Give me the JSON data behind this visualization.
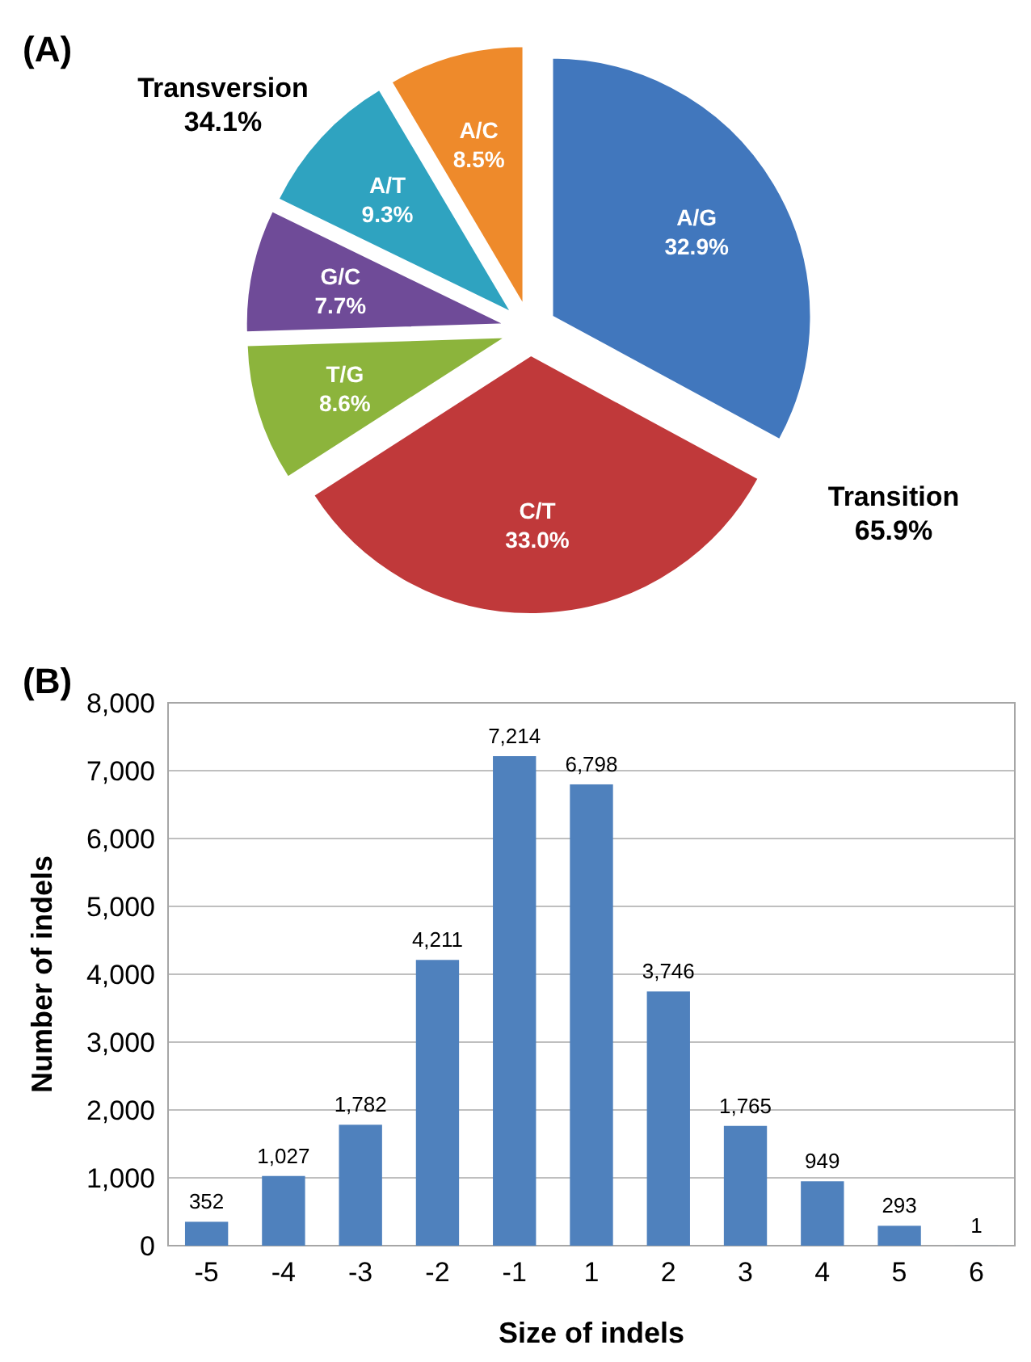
{
  "chart_data": [
    {
      "type": "pie",
      "title": "(A)",
      "categories": [
        "A/G",
        "C/T",
        "T/G",
        "G/C",
        "A/T",
        "A/C"
      ],
      "values": [
        32.9,
        33.0,
        8.6,
        7.7,
        9.3,
        8.5
      ],
      "value_labels": [
        "32.9%",
        "33.0%",
        "8.6%",
        "7.7%",
        "9.3%",
        "8.5%"
      ],
      "colors": [
        "#4177bd",
        "#c0393a",
        "#8cb43c",
        "#6f4b98",
        "#2fa3c0",
        "#ee8a2b"
      ],
      "annotations": [
        "Transition\n65.9%",
        "Transversion\n34.1%"
      ]
    },
    {
      "type": "bar",
      "title": "(B)",
      "xlabel": "Size of indels",
      "ylabel": "Number of indels",
      "categories": [
        "-5",
        "-4",
        "-3",
        "-2",
        "-1",
        "1",
        "2",
        "3",
        "4",
        "5",
        "6"
      ],
      "values": [
        352,
        1027,
        1782,
        4211,
        7214,
        6798,
        3746,
        1765,
        949,
        293,
        1
      ],
      "color": "#4f81bd",
      "ylim": [
        0,
        8000
      ],
      "yticks": [
        {
          "value": 0,
          "label": "0"
        },
        {
          "value": 1000,
          "label": "1,000"
        },
        {
          "value": 2000,
          "label": "2,000"
        },
        {
          "value": 3000,
          "label": "3,000"
        },
        {
          "value": 4000,
          "label": "4,000"
        },
        {
          "value": 5000,
          "label": "5,000"
        },
        {
          "value": 6000,
          "label": "6,000"
        },
        {
          "value": 7000,
          "label": "7,000"
        },
        {
          "value": 8000,
          "label": "8,000"
        }
      ],
      "grid": "y",
      "value_labels": [
        "352",
        "1,027",
        "1,782",
        "4,211",
        "7,214",
        "6,798",
        "3,746",
        "1,765",
        "949",
        "293",
        "1"
      ]
    }
  ]
}
